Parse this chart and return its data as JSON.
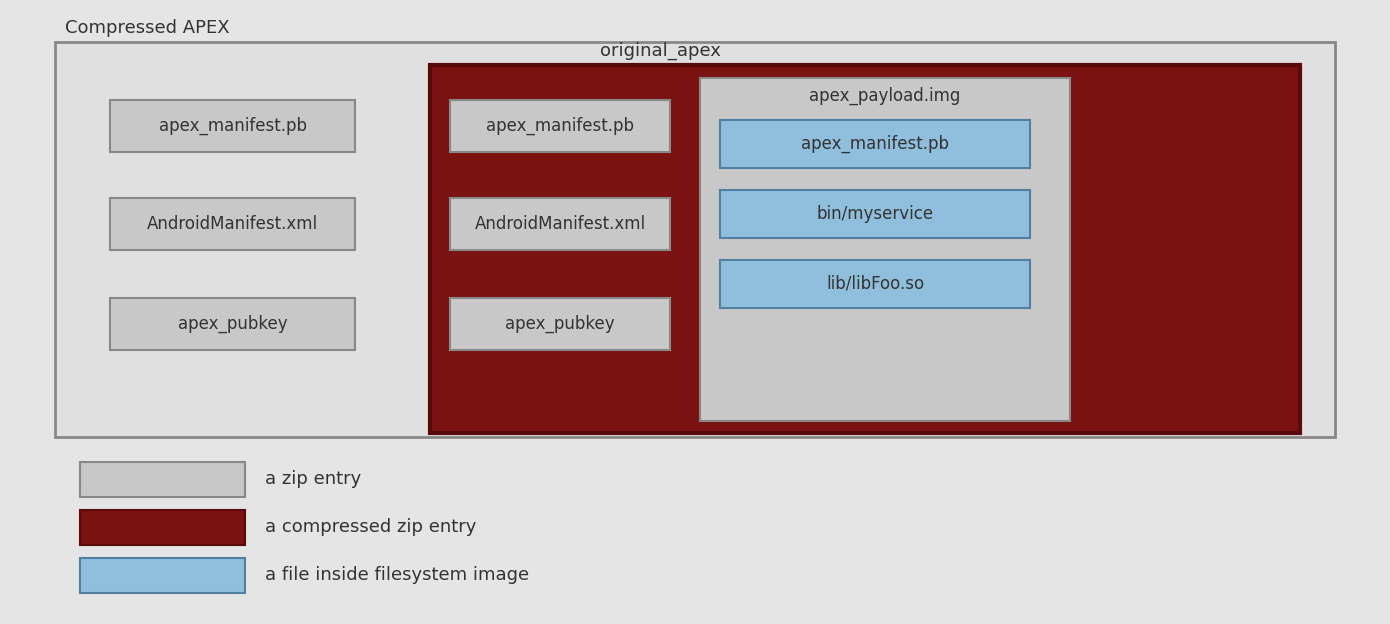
{
  "fig_width": 13.9,
  "fig_height": 6.24,
  "bg_color": "#e5e5e5",
  "title_compressed_apex": "Compressed APEX",
  "title_original_apex": "original_apex",
  "left_entries": [
    "apex_manifest.pb",
    "AndroidManifest.xml",
    "apex_pubkey"
  ],
  "inner_left_entries": [
    "apex_manifest.pb",
    "AndroidManifest.xml",
    "apex_pubkey"
  ],
  "payload_title": "apex_payload.img",
  "payload_entries": [
    "apex_manifest.pb",
    "bin/myservice",
    "lib/libFoo.so"
  ],
  "zip_entry_fc": "#c8c8c8",
  "zip_entry_ec": "#888888",
  "outer_box_fc": "#e0e0e0",
  "outer_box_ec": "#888888",
  "compressed_fc": "#7a1212",
  "compressed_ec": "#5a0a0a",
  "payload_box_fc": "#c8c8c8",
  "payload_box_ec": "#888888",
  "fs_entry_fc": "#90bedd",
  "fs_entry_ec": "#5080a0",
  "legend": [
    {
      "label": "a zip entry",
      "fc": "#c8c8c8",
      "ec": "#888888"
    },
    {
      "label": "a compressed zip entry",
      "fc": "#7a1212",
      "ec": "#5a0a0a"
    },
    {
      "label": "a file inside filesystem image",
      "fc": "#90bedd",
      "ec": "#5080a0"
    }
  ]
}
